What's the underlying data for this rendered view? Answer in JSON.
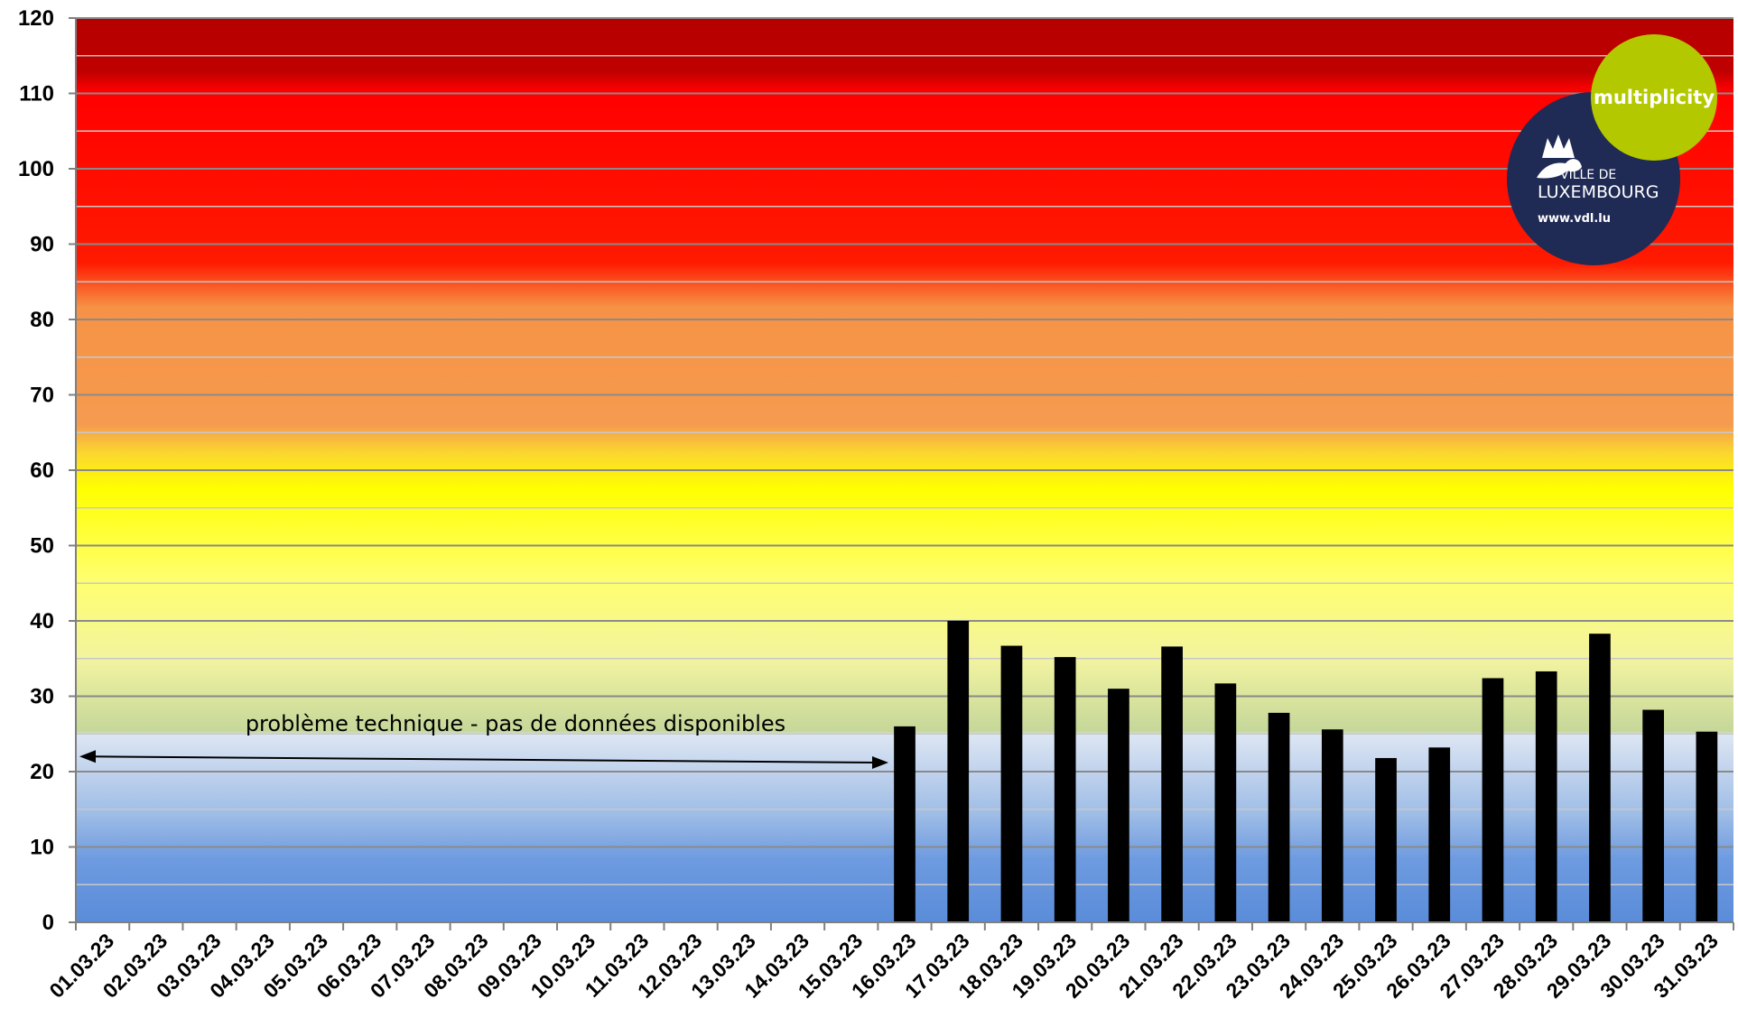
{
  "chart_data": {
    "type": "bar",
    "categories": [
      "01.03.23",
      "02.03.23",
      "03.03.23",
      "04.03.23",
      "05.03.23",
      "06.03.23",
      "07.03.23",
      "08.03.23",
      "09.03.23",
      "10.03.23",
      "11.03.23",
      "12.03.23",
      "13.03.23",
      "14.03.23",
      "15.03.23",
      "16.03.23",
      "17.03.23",
      "18.03.23",
      "19.03.23",
      "20.03.23",
      "21.03.23",
      "22.03.23",
      "23.03.23",
      "24.03.23",
      "25.03.23",
      "26.03.23",
      "27.03.23",
      "28.03.23",
      "29.03.23",
      "30.03.23",
      "31.03.23"
    ],
    "values": [
      null,
      null,
      null,
      null,
      null,
      null,
      null,
      null,
      null,
      null,
      null,
      null,
      null,
      null,
      null,
      26,
      40,
      36.7,
      35.2,
      31,
      36.6,
      31.7,
      27.8,
      25.6,
      21.8,
      23.2,
      32.4,
      33.3,
      38.3,
      28.2,
      25.3
    ],
    "ylim": [
      0,
      120
    ],
    "yticks": [
      0,
      10,
      20,
      30,
      40,
      50,
      60,
      70,
      80,
      90,
      100,
      110,
      120
    ],
    "title": "",
    "xlabel": "",
    "ylabel": "",
    "grid": true,
    "bar_color": "#000000",
    "background_bands": [
      {
        "from": 0,
        "to": 25,
        "color_bottom": "#5b8fd9",
        "color_top": "#dbe6f5"
      },
      {
        "from": 25,
        "to": 50,
        "color_bottom": "#c7d89c",
        "color_top": "#ffff6e"
      },
      {
        "from": 50,
        "to": 65,
        "color": "#ffff00"
      },
      {
        "from": 65,
        "to": 85,
        "color": "#f59b4f"
      },
      {
        "from": 85,
        "to": 120,
        "color": "#ff0000",
        "color_top": "#bf0000"
      }
    ],
    "annotation": {
      "text": "problème technique - pas de données disponibles",
      "from_category": "01.03.23",
      "to_category": "16.03.23"
    }
  },
  "logos": {
    "multiplicity": "multiplicity",
    "multiplicity_color": "#b4c800",
    "vdl_line1": "VILLE DE",
    "vdl_line2": "LUXEMBOURG",
    "vdl_url": "www.vdl.lu",
    "vdl_color": "#1f2a55",
    "vdl_icon": "lion-crown-icon"
  }
}
